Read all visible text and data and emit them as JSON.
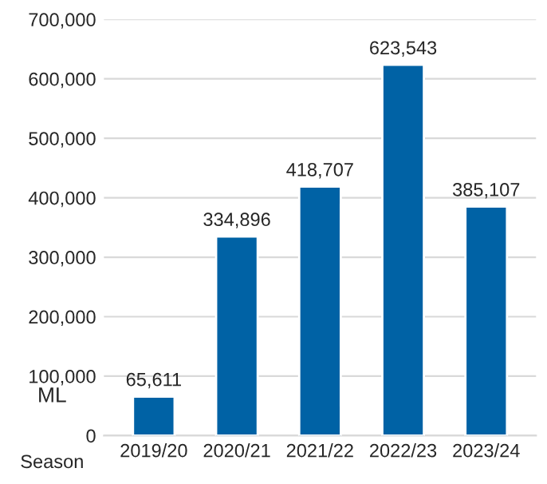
{
  "chart_data": {
    "type": "bar",
    "xlabel": "Season",
    "ylabel": "ML",
    "categories": [
      "2019/20",
      "2020/21",
      "2021/22",
      "2022/23",
      "2023/24"
    ],
    "values": [
      65611,
      334896,
      418707,
      623543,
      385107
    ],
    "value_labels": [
      "65,611",
      "334,896",
      "418,707",
      "623,543",
      "385,107"
    ],
    "color": "#0062a5",
    "ylim": [
      0,
      700000
    ],
    "yticks": [
      {
        "value": 0,
        "label": "0"
      },
      {
        "value": 100000,
        "label": "100,000"
      },
      {
        "value": 200000,
        "label": "200,000"
      },
      {
        "value": 300000,
        "label": "300,000"
      },
      {
        "value": 400000,
        "label": "400,000"
      },
      {
        "value": 500000,
        "label": "500,000"
      },
      {
        "value": 600000,
        "label": "600,000"
      },
      {
        "value": 700000,
        "label": "700,000"
      }
    ],
    "grid": "y"
  }
}
